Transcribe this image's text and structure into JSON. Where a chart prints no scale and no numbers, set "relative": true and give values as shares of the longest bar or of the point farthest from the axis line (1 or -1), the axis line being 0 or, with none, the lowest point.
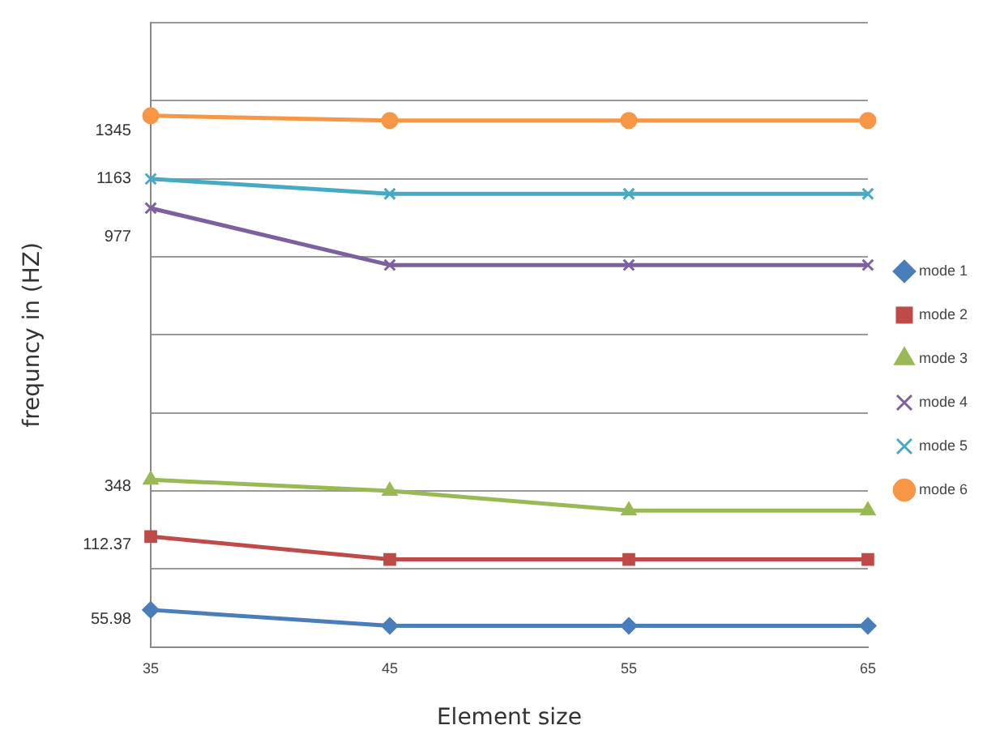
{
  "chart_data": {
    "type": "line",
    "xlabel": "Element size",
    "ylabel": "frequncy in (HZ)",
    "relative": true,
    "grid": "y",
    "legend": "right",
    "categories": [
      "35",
      "45",
      "55",
      "65"
    ],
    "series": [
      {
        "name": "mode 1",
        "color": "#4a7ebb",
        "marker": "diamond",
        "values": [
          0.07,
          0.04,
          0.04,
          0.04
        ]
      },
      {
        "name": "mode 2",
        "color": "#be4b48",
        "marker": "square",
        "values": [
          0.208,
          0.165,
          0.165,
          0.165
        ]
      },
      {
        "name": "mode 3",
        "color": "#98b954",
        "marker": "triangle",
        "values": [
          0.315,
          0.294,
          0.257,
          0.257
        ]
      },
      {
        "name": "mode 4",
        "color": "#7d60a0",
        "marker": "cross",
        "values": [
          0.826,
          0.719,
          0.719,
          0.719
        ]
      },
      {
        "name": "mode 5",
        "color": "#46aac5",
        "marker": "cross",
        "values": [
          0.881,
          0.853,
          0.853,
          0.853
        ]
      },
      {
        "name": "mode 6",
        "color": "#f79646",
        "marker": "circle",
        "values": [
          1,
          0.991,
          0.991,
          0.991
        ]
      }
    ],
    "annotations": [
      {
        "text": "1345",
        "x": "35",
        "y": 0.972
      },
      {
        "text": "1163",
        "x": "35",
        "y": 0.881
      },
      "977",
      {
        "text": "348",
        "x": "35",
        "y": 0.303
      },
      {
        "text": "112.37",
        "x": "35",
        "y": 0.193
      },
      {
        "text": "55.98",
        "x": "35",
        "y": 0.052
      }
    ]
  }
}
